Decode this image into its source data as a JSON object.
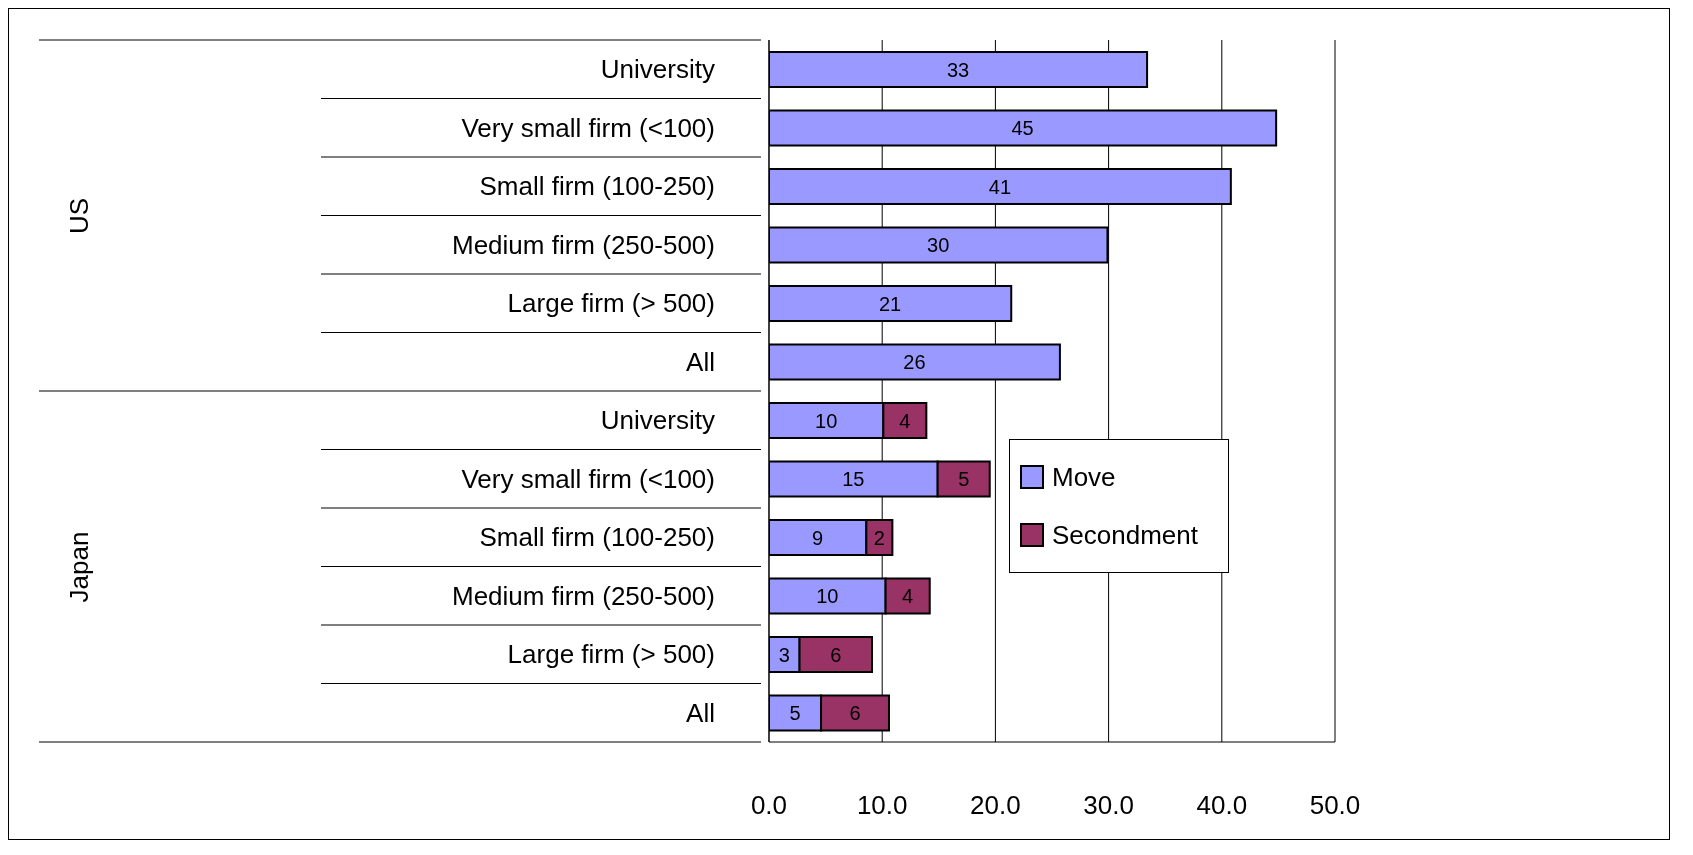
{
  "chart_data": {
    "type": "bar",
    "orientation": "horizontal",
    "stacked": true,
    "categories": [
      "University",
      "Very small firm (<100)",
      "Small firm (100-250)",
      "Medium firm (250-500)",
      "Large firm (> 500)",
      "All",
      "University",
      "Very small firm (<100)",
      "Small firm (100-250)",
      "Medium firm (250-500)",
      "Large firm (> 500)",
      "All"
    ],
    "series": [
      {
        "name": "Move",
        "color": "#9999ff",
        "values": [
          33.4,
          44.8,
          40.8,
          29.9,
          21.4,
          25.7,
          10.1,
          14.9,
          8.6,
          10.3,
          2.7,
          4.6
        ],
        "value_labels": [
          "33",
          "45",
          "41",
          "30",
          "21",
          "26",
          "10",
          "15",
          "9",
          "10",
          "3",
          "5"
        ]
      },
      {
        "name": "Secondment",
        "color": "#993366",
        "values": [
          null,
          null,
          null,
          null,
          null,
          null,
          3.8,
          4.6,
          2.3,
          3.9,
          6.4,
          6.0
        ],
        "value_labels": [
          null,
          null,
          null,
          null,
          null,
          null,
          "4",
          "5",
          "2",
          "4",
          "6",
          "6"
        ]
      }
    ],
    "xlim": [
      0,
      50
    ],
    "xticks": [
      {
        "value": 0,
        "label": "0.0"
      },
      {
        "value": 10,
        "label": "10.0"
      },
      {
        "value": 20,
        "label": "20.0"
      },
      {
        "value": 30,
        "label": "30.0"
      },
      {
        "value": 40,
        "label": "40.0"
      },
      {
        "value": 50,
        "label": "50.0"
      }
    ],
    "grid": "x",
    "legend": "right",
    "annotations": [
      "US",
      "Japan"
    ]
  }
}
